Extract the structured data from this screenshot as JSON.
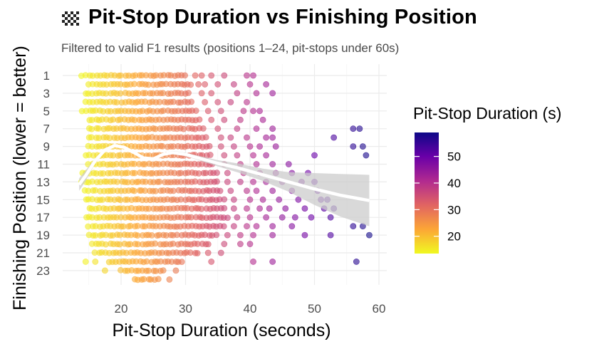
{
  "title": "Pit-Stop Duration vs Finishing Position",
  "title_icon": "checkered-flag-icon",
  "subtitle": "Filtered to valid F1 results (positions 1–24, pit-stops under 60s)",
  "chart_data": {
    "type": "scatter",
    "xlabel": "Pit-Stop Duration (seconds)",
    "ylabel": "Finishing Position (lower = better)",
    "xlim": [
      11.5,
      61
    ],
    "ylim": [
      24.2,
      0.2
    ],
    "y_reversed": true,
    "x_ticks": [
      20,
      30,
      40,
      50,
      60
    ],
    "y_ticks": [
      1,
      3,
      5,
      7,
      9,
      11,
      13,
      15,
      17,
      19,
      21,
      23
    ],
    "grid": true,
    "legend": {
      "title": "Pit-Stop Duration (s)",
      "placement": "right",
      "type": "colorbar",
      "ticks": [
        20,
        30,
        40,
        50
      ],
      "range": [
        13.5,
        59
      ]
    },
    "color_scale": "plasma",
    "color_stops": [
      "#0d0887",
      "#6a00a8",
      "#b12a90",
      "#e16462",
      "#fca636",
      "#f0f921"
    ],
    "point_opacity": 0.6,
    "bands": [
      {
        "position": 1,
        "dense_min": 14,
        "dense_max": 30,
        "outliers": [
          31.5,
          32.5,
          34,
          36,
          39.5,
          40.5
        ]
      },
      {
        "position": 2,
        "dense_min": 15,
        "dense_max": 31,
        "outliers": [
          32,
          33,
          35,
          37.5,
          40,
          42.5
        ]
      },
      {
        "position": 3,
        "dense_min": 14.5,
        "dense_max": 31,
        "outliers": [
          32.5,
          34,
          38,
          41,
          43.5
        ]
      },
      {
        "position": 4,
        "dense_min": 14.5,
        "dense_max": 31.5,
        "outliers": [
          33,
          35,
          37,
          39.5
        ]
      },
      {
        "position": 5,
        "dense_min": 14,
        "dense_max": 32,
        "outliers": [
          33.5,
          35.5,
          39,
          40.5,
          41.5
        ]
      },
      {
        "position": 6,
        "dense_min": 15,
        "dense_max": 32.5,
        "outliers": [
          34,
          36,
          38.5,
          42
        ]
      },
      {
        "position": 7,
        "dense_min": 15,
        "dense_max": 33,
        "outliers": [
          35,
          38,
          41,
          43.5,
          56,
          57
        ]
      },
      {
        "position": 8,
        "dense_min": 15,
        "dense_max": 33.5,
        "outliers": [
          35.5,
          37,
          39.5,
          42.5,
          43.5,
          53
        ]
      },
      {
        "position": 9,
        "dense_min": 15,
        "dense_max": 34,
        "outliers": [
          35.5,
          37.5,
          40,
          41.5,
          44,
          56,
          57.5
        ]
      },
      {
        "position": 10,
        "dense_min": 14.5,
        "dense_max": 34,
        "outliers": [
          36,
          38,
          40.5,
          42.5,
          50,
          58
        ]
      },
      {
        "position": 11,
        "dense_min": 15,
        "dense_max": 34.5,
        "outliers": [
          36,
          38.5,
          41,
          43.5,
          46
        ]
      },
      {
        "position": 12,
        "dense_min": 14,
        "dense_max": 35,
        "outliers": [
          36.5,
          39,
          41.5,
          44,
          46.5,
          49
        ]
      },
      {
        "position": 13,
        "dense_min": 14,
        "dense_max": 35,
        "outliers": [
          36.5,
          38.5,
          40.5,
          42.5,
          45,
          48,
          50
        ]
      },
      {
        "position": 14,
        "dense_min": 14.5,
        "dense_max": 35.5,
        "outliers": [
          37,
          39.5,
          41,
          43.5,
          46.5,
          50.5
        ]
      },
      {
        "position": 15,
        "dense_min": 14.5,
        "dense_max": 36,
        "outliers": [
          37.5,
          40,
          42,
          44.5,
          47.5,
          51,
          52
        ]
      },
      {
        "position": 16,
        "dense_min": 15,
        "dense_max": 36,
        "outliers": [
          37.5,
          39.5,
          41.5,
          43,
          45.5,
          48.5,
          51.5,
          53
        ]
      },
      {
        "position": 17,
        "dense_min": 14.5,
        "dense_max": 36.5,
        "outliers": [
          38,
          40,
          42.5,
          45,
          47,
          49.5,
          52.5
        ]
      },
      {
        "position": 18,
        "dense_min": 15,
        "dense_max": 36,
        "outliers": [
          37.5,
          39.5,
          41,
          43.5,
          46.5,
          56,
          57.5
        ]
      },
      {
        "position": 19,
        "dense_min": 15,
        "dense_max": 35,
        "outliers": [
          36.5,
          38.5,
          40.5,
          43.5,
          48.5,
          52.5,
          58.5
        ]
      },
      {
        "position": 20,
        "dense_min": 15.5,
        "dense_max": 34,
        "outliers": [
          36,
          38.5,
          40
        ]
      },
      {
        "position": 21,
        "dense_min": 16,
        "dense_max": 32,
        "outliers": [
          33.5,
          35.5
        ]
      },
      {
        "position": 22,
        "dense_min": 18,
        "dense_max": 30,
        "outliers": [
          14.5,
          16,
          34,
          40.5,
          43.5,
          56.5
        ]
      },
      {
        "position": 23,
        "dense_min": 20,
        "dense_max": 27,
        "outliers": [
          17.5,
          28.5
        ]
      },
      {
        "position": 24,
        "dense_min": 22,
        "dense_max": 26,
        "outliers": [
          27.5
        ]
      }
    ],
    "smooth_fit": {
      "type": "loess",
      "color": "#ffffff",
      "band_color": "#cccccc",
      "x": [
        13.5,
        14.5,
        16,
        17.5,
        19,
        20.5,
        22,
        23.5,
        25,
        26.5,
        28,
        30,
        32,
        35,
        38,
        42,
        46,
        50,
        54,
        58.5
      ],
      "y": [
        13.3,
        12.3,
        10.6,
        9.4,
        8.9,
        9.1,
        9.7,
        10.3,
        10.4,
        9.9,
        9.7,
        9.9,
        10.3,
        10.9,
        11.4,
        12.2,
        13.0,
        13.8,
        14.5,
        15.1
      ],
      "lower": [
        12.6,
        11.7,
        10.3,
        9.2,
        8.75,
        8.95,
        9.55,
        10.15,
        10.25,
        9.75,
        9.5,
        9.7,
        10.05,
        10.55,
        10.9,
        11.5,
        11.9,
        12.0,
        12.1,
        12.2
      ],
      "upper": [
        14.0,
        12.9,
        10.9,
        9.6,
        9.05,
        9.25,
        9.85,
        10.45,
        10.55,
        10.05,
        9.9,
        10.1,
        10.55,
        11.25,
        11.9,
        12.9,
        14.1,
        15.6,
        16.9,
        18.0
      ]
    }
  }
}
